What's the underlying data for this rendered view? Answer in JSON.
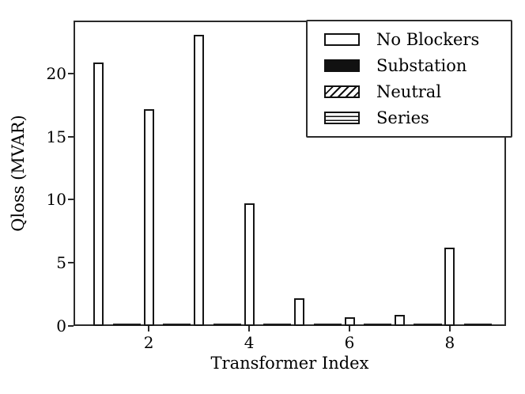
{
  "chart_data": {
    "type": "bar",
    "title": "",
    "xlabel": "Transformer Index",
    "ylabel": "Qloss (MVAR)",
    "categories": [
      1,
      2,
      3,
      4,
      5,
      6,
      7,
      8
    ],
    "series": [
      {
        "name": "No Blockers",
        "swatch": "white-fill",
        "values": [
          20.9,
          17.2,
          23.1,
          9.7,
          2.2,
          0.7,
          0.9,
          6.2
        ]
      },
      {
        "name": "Substation",
        "swatch": "solid-black",
        "values": [
          0,
          0,
          0,
          0,
          0,
          0,
          0,
          0
        ]
      },
      {
        "name": "Neutral",
        "swatch": "diagonal-hatch",
        "values": [
          0,
          0,
          0,
          0,
          0,
          0,
          0,
          0
        ]
      },
      {
        "name": "Series",
        "swatch": "horizontal-hatch",
        "values": [
          0,
          0,
          0,
          0,
          0,
          0,
          0,
          0
        ]
      }
    ],
    "xticks": [
      2,
      4,
      6,
      8
    ],
    "yticks": [
      0,
      5,
      10,
      15,
      20
    ],
    "xlim": [
      0.5,
      9.12
    ],
    "ylim": [
      0,
      24.2
    ],
    "grid": false,
    "legend_position": "upper right",
    "colors": {
      "bar_fill": "#ffffff",
      "bar_edge": "#161616",
      "axis": "#2a2a2a",
      "text": "#000000",
      "background": "#ffffff"
    }
  }
}
